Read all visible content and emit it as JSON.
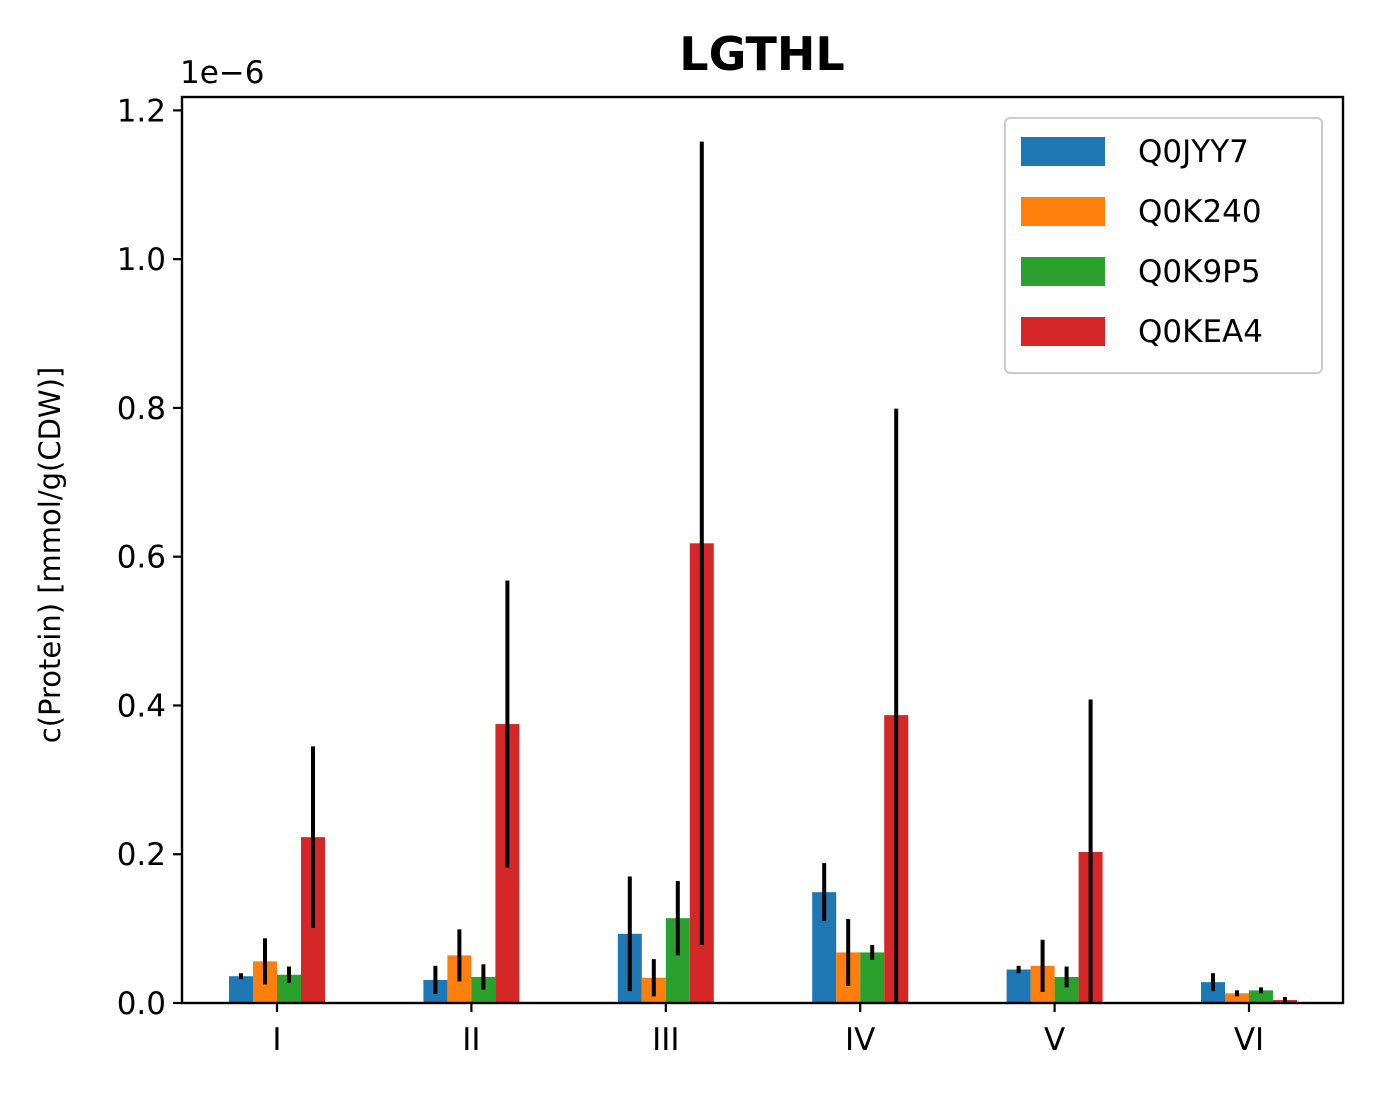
{
  "chart_data": {
    "type": "bar",
    "title": "LGTHL",
    "xlabel": "",
    "ylabel": "c(Protein) [mmol/g(CDW)]",
    "y_scale_label": "1e−6",
    "ylim": [
      0,
      1.2
    ],
    "yticks": [
      "0.0",
      "0.2",
      "0.4",
      "0.6",
      "0.8",
      "1.0",
      "1.2"
    ],
    "categories": [
      "I",
      "II",
      "III",
      "IV",
      "V",
      "VI"
    ],
    "series": [
      {
        "name": "Q0JYY7",
        "color": "#1f77b4",
        "values": [
          0.036,
          0.031,
          0.093,
          0.149,
          0.045,
          0.028
        ],
        "errors": [
          0.004,
          0.019,
          0.077,
          0.039,
          0.005,
          0.012
        ]
      },
      {
        "name": "Q0K240",
        "color": "#ff7f0e",
        "values": [
          0.056,
          0.064,
          0.034,
          0.068,
          0.05,
          0.013
        ],
        "errors": [
          0.031,
          0.035,
          0.025,
          0.045,
          0.035,
          0.004
        ]
      },
      {
        "name": "Q0K9P5",
        "color": "#2ca02c",
        "values": [
          0.038,
          0.035,
          0.114,
          0.068,
          0.035,
          0.017
        ],
        "errors": [
          0.011,
          0.017,
          0.05,
          0.01,
          0.014,
          0.004
        ]
      },
      {
        "name": "Q0KEA4",
        "color": "#d62728",
        "values": [
          0.223,
          0.375,
          0.618,
          0.387,
          0.203,
          0.004
        ],
        "errors": [
          0.122,
          0.193,
          0.54,
          0.412,
          0.205,
          0.004
        ]
      }
    ],
    "grid": false,
    "legend_position": "top-right"
  }
}
